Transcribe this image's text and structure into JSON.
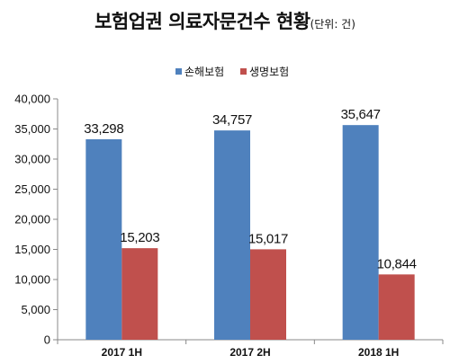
{
  "chart_data": {
    "type": "bar",
    "title": "보험업권 의료자문건수 현황",
    "subtitle": "(단위: 건)",
    "categories": [
      "2017 1H",
      "2017 2H",
      "2018 1H"
    ],
    "series": [
      {
        "name": "손해보험",
        "values": [
          33298,
          34757,
          35647
        ],
        "labels": [
          "33,298",
          "34,757",
          "35,647"
        ],
        "color": "#4f81bd"
      },
      {
        "name": "생명보험",
        "values": [
          15203,
          15017,
          10844
        ],
        "labels": [
          "15,203",
          "15,017",
          "10,844"
        ],
        "color": "#c0504d"
      }
    ],
    "y_ticks": [
      "0",
      "5,000",
      "10,000",
      "15,000",
      "20,000",
      "25,000",
      "30,000",
      "35,000",
      "40,000"
    ],
    "ylim": [
      0,
      40000
    ],
    "legend": "top-center",
    "grid": false
  }
}
